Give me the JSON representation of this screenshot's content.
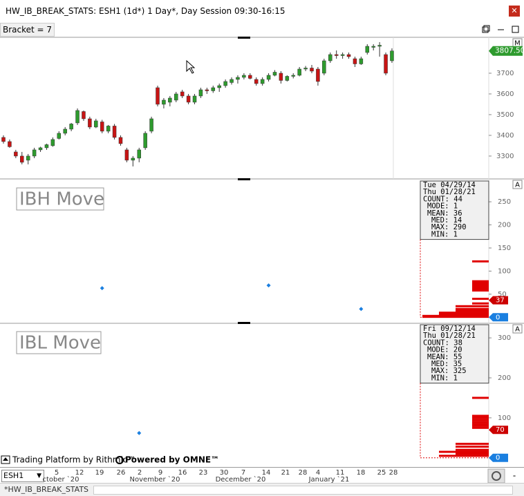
{
  "window": {
    "title": "HW_IB_BREAK_STATS: ESH1 (1d*) 1 Day*, Day Session 09:30-16:15",
    "close": "✕"
  },
  "toolbar": {
    "bracket": "Bracket = 7"
  },
  "price_panel": {
    "badge": "M",
    "ylim": [
      3193,
      3870
    ],
    "yticks": [
      3300,
      3400,
      3500,
      3600,
      3700
    ],
    "last_price": {
      "value": 3807.5,
      "label": "3807.50"
    },
    "up_color": "#2e9b2e",
    "down_color": "#c81414",
    "candles": [
      [
        3390,
        3400,
        3360,
        3370
      ],
      [
        3370,
        3380,
        3340,
        3345
      ],
      [
        3320,
        3330,
        3290,
        3300
      ],
      [
        3300,
        3320,
        3260,
        3270
      ],
      [
        3280,
        3310,
        3260,
        3300
      ],
      [
        3300,
        3340,
        3290,
        3330
      ],
      [
        3330,
        3345,
        3320,
        3340
      ],
      [
        3340,
        3360,
        3330,
        3355
      ],
      [
        3350,
        3390,
        3345,
        3380
      ],
      [
        3385,
        3420,
        3380,
        3410
      ],
      [
        3410,
        3440,
        3400,
        3430
      ],
      [
        3430,
        3460,
        3420,
        3455
      ],
      [
        3460,
        3530,
        3450,
        3520
      ],
      [
        3515,
        3520,
        3470,
        3480
      ],
      [
        3480,
        3490,
        3430,
        3440
      ],
      [
        3440,
        3480,
        3435,
        3470
      ],
      [
        3465,
        3475,
        3410,
        3420
      ],
      [
        3420,
        3450,
        3410,
        3445
      ],
      [
        3445,
        3455,
        3380,
        3390
      ],
      [
        3390,
        3400,
        3350,
        3360
      ],
      [
        3330,
        3340,
        3270,
        3280
      ],
      [
        3280,
        3300,
        3250,
        3290
      ],
      [
        3290,
        3340,
        3270,
        3330
      ],
      [
        3340,
        3420,
        3330,
        3410
      ],
      [
        3420,
        3490,
        3410,
        3480
      ],
      [
        3630,
        3640,
        3540,
        3550
      ],
      [
        3550,
        3580,
        3530,
        3570
      ],
      [
        3560,
        3590,
        3540,
        3580
      ],
      [
        3570,
        3610,
        3560,
        3600
      ],
      [
        3610,
        3620,
        3580,
        3590
      ],
      [
        3590,
        3600,
        3550,
        3560
      ],
      [
        3560,
        3600,
        3550,
        3590
      ],
      [
        3590,
        3630,
        3580,
        3620
      ],
      [
        3620,
        3630,
        3600,
        3615
      ],
      [
        3615,
        3640,
        3605,
        3630
      ],
      [
        3630,
        3650,
        3610,
        3640
      ],
      [
        3640,
        3670,
        3630,
        3660
      ],
      [
        3655,
        3680,
        3645,
        3670
      ],
      [
        3670,
        3690,
        3650,
        3680
      ],
      [
        3680,
        3700,
        3670,
        3690
      ],
      [
        3690,
        3700,
        3670,
        3675
      ],
      [
        3670,
        3680,
        3640,
        3650
      ],
      [
        3650,
        3680,
        3640,
        3670
      ],
      [
        3670,
        3700,
        3660,
        3690
      ],
      [
        3690,
        3715,
        3685,
        3705
      ],
      [
        3700,
        3710,
        3650,
        3665
      ],
      [
        3665,
        3690,
        3660,
        3685
      ],
      [
        3685,
        3700,
        3675,
        3690
      ],
      [
        3690,
        3730,
        3685,
        3720
      ],
      [
        3720,
        3735,
        3710,
        3725
      ],
      [
        3725,
        3740,
        3700,
        3710
      ],
      [
        3720,
        3730,
        3640,
        3660
      ],
      [
        3700,
        3770,
        3690,
        3760
      ],
      [
        3760,
        3800,
        3750,
        3790
      ],
      [
        3790,
        3810,
        3770,
        3785
      ],
      [
        3785,
        3800,
        3770,
        3790
      ],
      [
        3790,
        3800,
        3770,
        3780
      ],
      [
        3770,
        3780,
        3730,
        3745
      ],
      [
        3745,
        3780,
        3740,
        3770
      ],
      [
        3800,
        3840,
        3790,
        3830
      ],
      [
        3825,
        3840,
        3810,
        3830
      ],
      [
        3830,
        3850,
        3780,
        3835
      ],
      [
        3790,
        3800,
        3690,
        3700
      ],
      [
        3760,
        3820,
        3750,
        3807.5
      ]
    ]
  },
  "ibh_panel": {
    "label": "IBH Move",
    "badge": "A",
    "ylim": [
      -10,
      295
    ],
    "yticks": [
      50,
      100,
      150,
      200,
      250
    ],
    "stats": [
      "Tue 04/29/14",
      "Thu 01/28/21",
      "COUNT: 44",
      "MODE: 1",
      "MEAN: 36",
      "MED: 14",
      "MAX: 290",
      "MIN: 1"
    ],
    "values": [
      null,
      null,
      null,
      null,
      null,
      null,
      null,
      null,
      null,
      null,
      null,
      null,
      null,
      null,
      null,
      null,
      63,
      null,
      null,
      null,
      null,
      null,
      null,
      null,
      null,
      null,
      null,
      null,
      null,
      null,
      null,
      null,
      null,
      null,
      null,
      null,
      null,
      null,
      null,
      null,
      null,
      null,
      null,
      69,
      null,
      null,
      null,
      null,
      null,
      null,
      null,
      null,
      null,
      null,
      null,
      null,
      null,
      null,
      18,
      null,
      null,
      null,
      null,
      null
    ],
    "current_tag": 37,
    "zero_tag": 0,
    "profile_values": [
      121,
      78,
      74,
      70,
      66,
      62,
      58,
      40,
      30,
      24,
      18,
      14,
      10,
      6,
      3,
      1
    ],
    "profile_counts": [
      1,
      1,
      1,
      1,
      1,
      1,
      1,
      1,
      1,
      2,
      2,
      2,
      3,
      3,
      4,
      4
    ]
  },
  "ibl_panel": {
    "label": "IBL Move",
    "badge": "A",
    "ylim": [
      -16,
      333
    ],
    "yticks": [
      100,
      200,
      300
    ],
    "stats": [
      "Fri 09/12/14",
      "Thu 01/28/21",
      "COUNT: 38",
      "MODE: 20",
      "MEAN: 55",
      "MED: 35",
      "MAX: 325",
      "MIN: 1"
    ],
    "values": [
      null,
      null,
      null,
      null,
      null,
      null,
      null,
      null,
      null,
      null,
      null,
      null,
      null,
      null,
      null,
      null,
      null,
      null,
      null,
      null,
      null,
      null,
      62,
      null,
      null,
      null,
      null,
      null,
      null,
      null,
      null,
      null,
      null,
      null,
      null,
      null,
      null,
      null,
      null,
      null,
      null,
      null,
      null,
      null,
      null,
      null,
      null,
      null,
      null,
      null,
      null,
      null,
      null,
      null,
      null,
      null,
      null,
      null,
      null,
      null,
      null,
      null,
      null,
      null
    ],
    "current_tag": 70,
    "zero_tag": 0,
    "profile_values": [
      150,
      105,
      100,
      95,
      90,
      85,
      80,
      75,
      35,
      28,
      20,
      15,
      10,
      5
    ],
    "profile_counts": [
      1,
      1,
      1,
      1,
      1,
      1,
      1,
      1,
      2,
      2,
      2,
      3,
      2,
      3
    ]
  },
  "footer": {
    "rithmic": "Trading Platform by Rithmic™",
    "omne": "Powered by OMNE™"
  },
  "xaxis": {
    "day_labels": [
      "5",
      "12",
      "19",
      "26",
      "2",
      "9",
      "16",
      "23",
      "30",
      "7",
      "14",
      "21",
      "28",
      "4",
      "11",
      "18",
      "25",
      "28"
    ],
    "month_labels": [
      "ctober `20",
      "November `20",
      "December `20",
      "January `21"
    ]
  },
  "symbol": "ESH1",
  "tab": "*HW_IB_BREAK_STATS"
}
